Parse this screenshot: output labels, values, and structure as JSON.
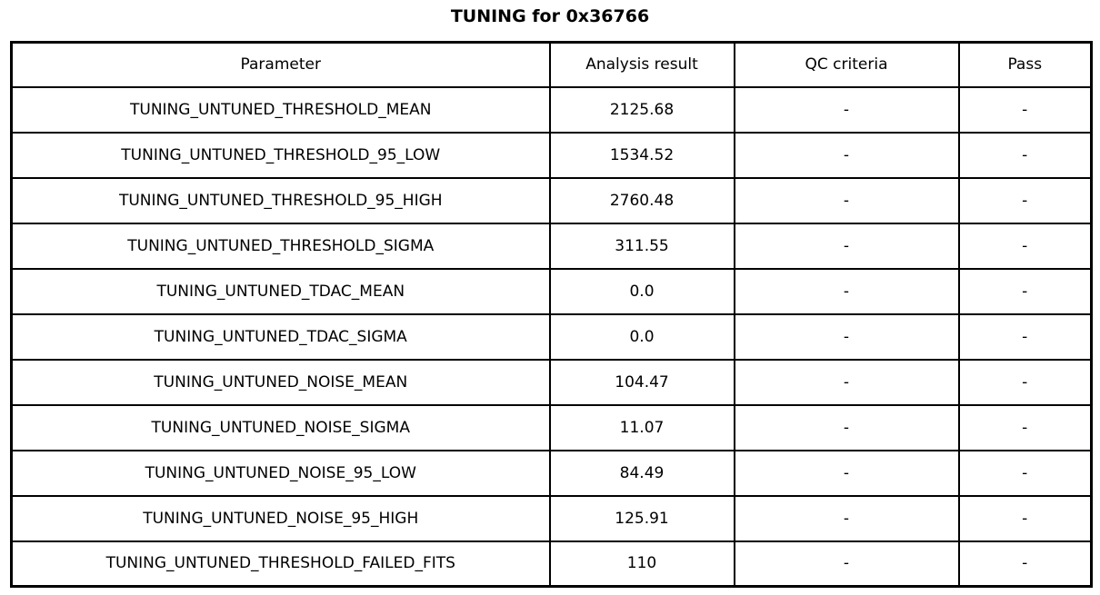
{
  "title": "TUNING for 0x36766",
  "table": {
    "columns": [
      "Parameter",
      "Analysis result",
      "QC criteria",
      "Pass"
    ],
    "rows": [
      {
        "parameter": "TUNING_UNTUNED_THRESHOLD_MEAN",
        "analysis_result": "2125.68",
        "qc_criteria": "-",
        "pass": "-"
      },
      {
        "parameter": "TUNING_UNTUNED_THRESHOLD_95_LOW",
        "analysis_result": "1534.52",
        "qc_criteria": "-",
        "pass": "-"
      },
      {
        "parameter": "TUNING_UNTUNED_THRESHOLD_95_HIGH",
        "analysis_result": "2760.48",
        "qc_criteria": "-",
        "pass": "-"
      },
      {
        "parameter": "TUNING_UNTUNED_THRESHOLD_SIGMA",
        "analysis_result": "311.55",
        "qc_criteria": "-",
        "pass": "-"
      },
      {
        "parameter": "TUNING_UNTUNED_TDAC_MEAN",
        "analysis_result": "0.0",
        "qc_criteria": "-",
        "pass": "-"
      },
      {
        "parameter": "TUNING_UNTUNED_TDAC_SIGMA",
        "analysis_result": "0.0",
        "qc_criteria": "-",
        "pass": "-"
      },
      {
        "parameter": "TUNING_UNTUNED_NOISE_MEAN",
        "analysis_result": "104.47",
        "qc_criteria": "-",
        "pass": "-"
      },
      {
        "parameter": "TUNING_UNTUNED_NOISE_SIGMA",
        "analysis_result": "11.07",
        "qc_criteria": "-",
        "pass": "-"
      },
      {
        "parameter": "TUNING_UNTUNED_NOISE_95_LOW",
        "analysis_result": "84.49",
        "qc_criteria": "-",
        "pass": "-"
      },
      {
        "parameter": "TUNING_UNTUNED_NOISE_95_HIGH",
        "analysis_result": "125.91",
        "qc_criteria": "-",
        "pass": "-"
      },
      {
        "parameter": "TUNING_UNTUNED_THRESHOLD_FAILED_FITS",
        "analysis_result": "110",
        "qc_criteria": "-",
        "pass": "-"
      }
    ]
  },
  "chart_data": {
    "type": "table",
    "title": "TUNING for 0x36766",
    "columns": [
      "Parameter",
      "Analysis result",
      "QC criteria",
      "Pass"
    ],
    "rows": [
      [
        "TUNING_UNTUNED_THRESHOLD_MEAN",
        "2125.68",
        "-",
        "-"
      ],
      [
        "TUNING_UNTUNED_THRESHOLD_95_LOW",
        "1534.52",
        "-",
        "-"
      ],
      [
        "TUNING_UNTUNED_THRESHOLD_95_HIGH",
        "2760.48",
        "-",
        "-"
      ],
      [
        "TUNING_UNTUNED_THRESHOLD_SIGMA",
        "311.55",
        "-",
        "-"
      ],
      [
        "TUNING_UNTUNED_TDAC_MEAN",
        "0.0",
        "-",
        "-"
      ],
      [
        "TUNING_UNTUNED_TDAC_SIGMA",
        "0.0",
        "-",
        "-"
      ],
      [
        "TUNING_UNTUNED_NOISE_MEAN",
        "104.47",
        "-",
        "-"
      ],
      [
        "TUNING_UNTUNED_NOISE_SIGMA",
        "11.07",
        "-",
        "-"
      ],
      [
        "TUNING_UNTUNED_NOISE_95_LOW",
        "84.49",
        "-",
        "-"
      ],
      [
        "TUNING_UNTUNED_NOISE_95_HIGH",
        "125.91",
        "-",
        "-"
      ],
      [
        "TUNING_UNTUNED_THRESHOLD_FAILED_FITS",
        "110",
        "-",
        "-"
      ]
    ],
    "layout": {
      "grid": true,
      "text_align": "center",
      "border_color": "#000000",
      "background": "#ffffff"
    }
  }
}
